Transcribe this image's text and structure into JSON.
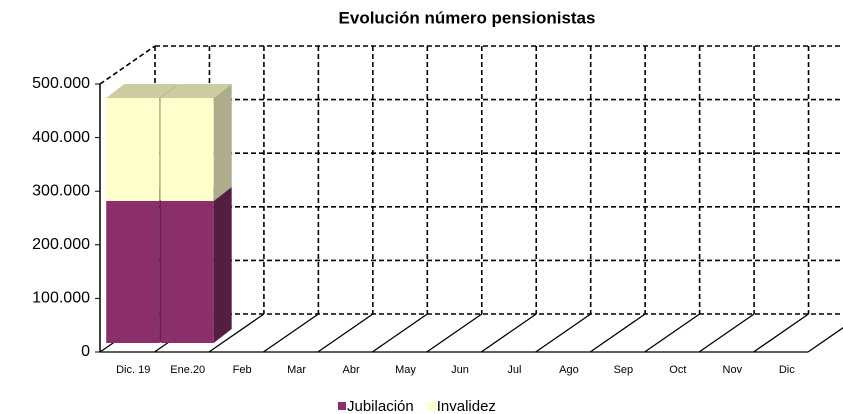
{
  "chart_data": {
    "type": "bar3d_stacked",
    "title": "Evolución número pensionistas",
    "categories": [
      "Dic. 19",
      "Ene.20",
      "Feb",
      "Mar",
      "Abr",
      "May",
      "Jun",
      "Jul",
      "Ago",
      "Sep",
      "Oct",
      "Nov",
      "Dic"
    ],
    "series": [
      {
        "name": "Jubilación",
        "color": "#8b2f6b",
        "values": [
          265000,
          265000,
          null,
          null,
          null,
          null,
          null,
          null,
          null,
          null,
          null,
          null,
          null
        ]
      },
      {
        "name": "Invalidez",
        "color": "#ffffcc",
        "values": [
          192000,
          192000,
          null,
          null,
          null,
          null,
          null,
          null,
          null,
          null,
          null,
          null,
          null
        ]
      }
    ],
    "ylim": [
      0,
      500000
    ],
    "yticks": [
      0,
      {
        "value": 100000,
        "label": "100.000"
      },
      {
        "value": 200000,
        "label": "200.000"
      },
      {
        "value": 300000,
        "label": "300.000"
      },
      {
        "value": 400000,
        "label": "400.000"
      },
      {
        "value": 500000,
        "label": "500.000"
      }
    ],
    "grid": true,
    "legend": "bottom"
  }
}
